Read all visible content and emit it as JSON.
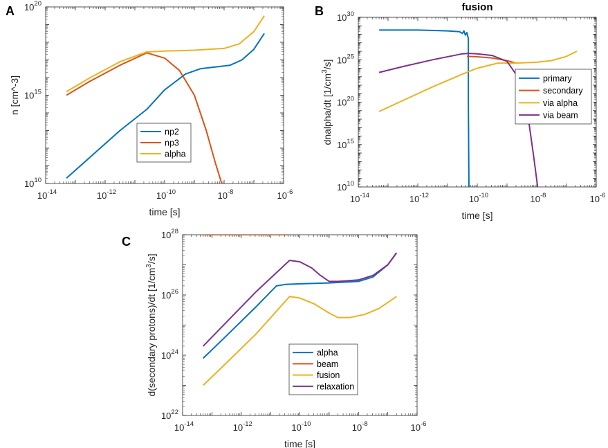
{
  "panels": [
    "A",
    "B",
    "C"
  ],
  "colors": {
    "blue": "#0072BD",
    "orange": "#D95319",
    "yellow": "#EDB120",
    "purple": "#7E2F8E",
    "axis": "#262626"
  },
  "chart_data": [
    {
      "id": "A",
      "type": "line",
      "title": "",
      "xlabel": "time [s]",
      "ylabel": "n [cm^-3]",
      "xscale": "log",
      "yscale": "log",
      "xlim_exp": [
        -14,
        -6
      ],
      "ylim_exp": [
        10,
        20
      ],
      "xticks_exp": [
        -14,
        -12,
        -10,
        -8,
        -6
      ],
      "yticks_exp": [
        10,
        15,
        20
      ],
      "legend": "center",
      "series": [
        {
          "name": "np2",
          "color": "#0072BD",
          "logx": [
            -13.3,
            -12.5,
            -11.5,
            -10.6,
            -10.0,
            -9.3,
            -8.8,
            -8.3,
            -7.8,
            -7.4,
            -7.0,
            -6.65
          ],
          "logy": [
            10.3,
            11.5,
            13.0,
            14.2,
            15.3,
            16.2,
            16.5,
            16.6,
            16.7,
            17.0,
            17.6,
            18.5
          ]
        },
        {
          "name": "np3",
          "color": "#D95319",
          "logx": [
            -13.3,
            -12.5,
            -11.5,
            -10.6,
            -10.0,
            -9.5,
            -9.0,
            -8.6,
            -8.3,
            -8.1,
            -8.0
          ],
          "logy": [
            15.0,
            15.8,
            16.7,
            17.4,
            17.1,
            16.4,
            15.0,
            13.0,
            11.2,
            10.1,
            9.6
          ]
        },
        {
          "name": "alpha",
          "color": "#EDB120",
          "logx": [
            -13.3,
            -12.5,
            -11.5,
            -10.6,
            -10.0,
            -9.0,
            -8.0,
            -7.5,
            -7.0,
            -6.65
          ],
          "logy": [
            15.2,
            16.0,
            16.9,
            17.45,
            17.5,
            17.55,
            17.65,
            17.9,
            18.6,
            19.5
          ]
        }
      ]
    },
    {
      "id": "B",
      "type": "line",
      "title": "fusion",
      "xlabel": "time [s]",
      "ylabel_main": "dnalpha/dt [1/cm",
      "ylabel_sup": "3",
      "ylabel_tail": "/s]",
      "xscale": "log",
      "yscale": "log",
      "xlim_exp": [
        -14,
        -6
      ],
      "ylim_exp": [
        10,
        30
      ],
      "xticks_exp": [
        -14,
        -12,
        -10,
        -8,
        -6
      ],
      "yticks_exp": [
        10,
        15,
        20,
        25,
        30
      ],
      "legend": "upper-right",
      "series": [
        {
          "name": "primary",
          "color": "#0072BD",
          "logx": [
            -13.3,
            -12.0,
            -11.0,
            -10.6,
            -10.5,
            -10.45,
            -10.4,
            -10.35,
            -10.3,
            -10.3,
            -10.28
          ],
          "logy": [
            28.5,
            28.5,
            28.4,
            28.3,
            28.1,
            28.4,
            27.9,
            28.2,
            27.5,
            20.0,
            9.5
          ]
        },
        {
          "name": "secondary",
          "color": "#D95319",
          "logx": [
            -10.35,
            -10.0,
            -9.5,
            -9.0,
            -8.7
          ],
          "logy": [
            25.4,
            25.35,
            25.2,
            24.9,
            24.6
          ]
        },
        {
          "name": "via alpha",
          "color": "#EDB120",
          "logx": [
            -13.3,
            -12.5,
            -11.5,
            -10.5,
            -10.0,
            -9.3,
            -8.7,
            -8.0,
            -7.5,
            -7.0,
            -6.65
          ],
          "logy": [
            18.9,
            20.2,
            21.8,
            23.3,
            24.0,
            24.6,
            24.6,
            24.7,
            24.9,
            25.4,
            26.0
          ]
        },
        {
          "name": "via beam",
          "color": "#7E2F8E",
          "logx": [
            -13.3,
            -12.5,
            -11.5,
            -10.5,
            -10.3,
            -10.0,
            -9.5,
            -9.0,
            -8.6,
            -8.3,
            -8.1,
            -7.95
          ],
          "logy": [
            23.5,
            24.2,
            25.0,
            25.7,
            25.75,
            25.7,
            25.5,
            24.8,
            22.8,
            18.5,
            13.5,
            9.5
          ]
        }
      ]
    },
    {
      "id": "C",
      "type": "line",
      "title": "",
      "xlabel": "time [s]",
      "ylabel_main": "d(secondary protons)/dt [1/cm",
      "ylabel_sup": "3",
      "ylabel_tail": "/s]",
      "xscale": "log",
      "yscale": "log",
      "xlim_exp": [
        -14,
        -6
      ],
      "ylim_exp": [
        22,
        28
      ],
      "xticks_exp": [
        -14,
        -12,
        -10,
        -8,
        -6
      ],
      "yticks_exp": [
        22,
        24,
        26,
        28
      ],
      "legend": "lower-center",
      "series": [
        {
          "name": "alpha",
          "color": "#0072BD",
          "logx": [
            -13.3,
            -12.5,
            -11.5,
            -10.8,
            -10.5,
            -10.0,
            -9.0,
            -8.0,
            -7.5,
            -7.0,
            -6.7
          ],
          "logy": [
            23.9,
            24.65,
            25.6,
            26.3,
            26.35,
            26.37,
            26.4,
            26.45,
            26.6,
            27.0,
            27.4
          ]
        },
        {
          "name": "beam",
          "color": "#D95319",
          "logx": [
            -13.3,
            -10.35
          ],
          "logy": [
            28.0,
            28.0
          ]
        },
        {
          "name": "fusion",
          "color": "#EDB120",
          "logx": [
            -13.3,
            -12.5,
            -11.5,
            -10.35,
            -10.0,
            -9.5,
            -9.0,
            -8.7,
            -8.3,
            -7.8,
            -7.3,
            -6.7
          ],
          "logy": [
            23.0,
            23.75,
            24.7,
            25.95,
            25.9,
            25.7,
            25.4,
            25.25,
            25.25,
            25.35,
            25.55,
            25.95
          ]
        },
        {
          "name": "relaxation",
          "color": "#7E2F8E",
          "logx": [
            -13.3,
            -12.5,
            -11.5,
            -10.35,
            -10.0,
            -9.6,
            -9.3,
            -9.0,
            -8.7,
            -8.0,
            -7.5,
            -7.0,
            -6.7
          ],
          "logy": [
            24.3,
            25.1,
            26.1,
            27.15,
            27.1,
            26.9,
            26.65,
            26.45,
            26.45,
            26.5,
            26.65,
            27.0,
            27.4
          ]
        }
      ]
    }
  ]
}
